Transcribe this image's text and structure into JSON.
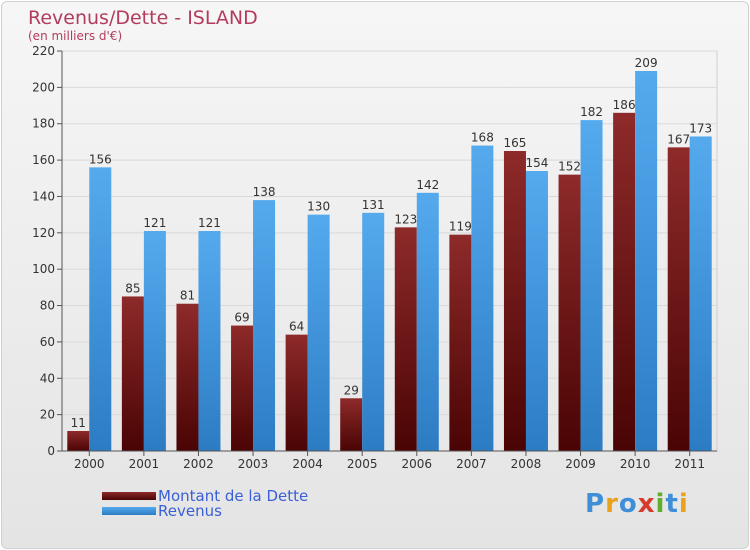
{
  "chart_data": {
    "type": "bar",
    "title": "Revenus/Dette - ISLAND",
    "subtitle": "(en milliers d'€)",
    "categories": [
      "2000",
      "2001",
      "2002",
      "2003",
      "2004",
      "2005",
      "2006",
      "2007",
      "2008",
      "2009",
      "2010",
      "2011"
    ],
    "series": [
      {
        "name": "Montant de la Dette",
        "values": [
          11,
          85,
          81,
          69,
          64,
          29,
          123,
          119,
          165,
          152,
          186,
          167
        ],
        "color": "#7a1616"
      },
      {
        "name": "Revenus",
        "values": [
          156,
          121,
          121,
          138,
          130,
          131,
          142,
          168,
          154,
          182,
          209,
          173
        ],
        "color": "#3d97df"
      }
    ],
    "yticks": [
      0,
      20,
      40,
      60,
      80,
      100,
      120,
      140,
      160,
      180,
      200,
      220
    ],
    "ylim": [
      0,
      220
    ],
    "grid": true,
    "legend": "bottom-left"
  },
  "logo": {
    "text": "Proxiti",
    "letters": [
      {
        "ch": "P",
        "color": "#3e8fd8"
      },
      {
        "ch": "r",
        "color": "#e8a21d"
      },
      {
        "ch": "o",
        "color": "#3e8fd8"
      },
      {
        "ch": "x",
        "color": "#d73b2c"
      },
      {
        "ch": "i",
        "color": "#5fae2e"
      },
      {
        "ch": "t",
        "color": "#3e8fd8"
      },
      {
        "ch": "i",
        "color": "#e8a21d"
      }
    ]
  }
}
